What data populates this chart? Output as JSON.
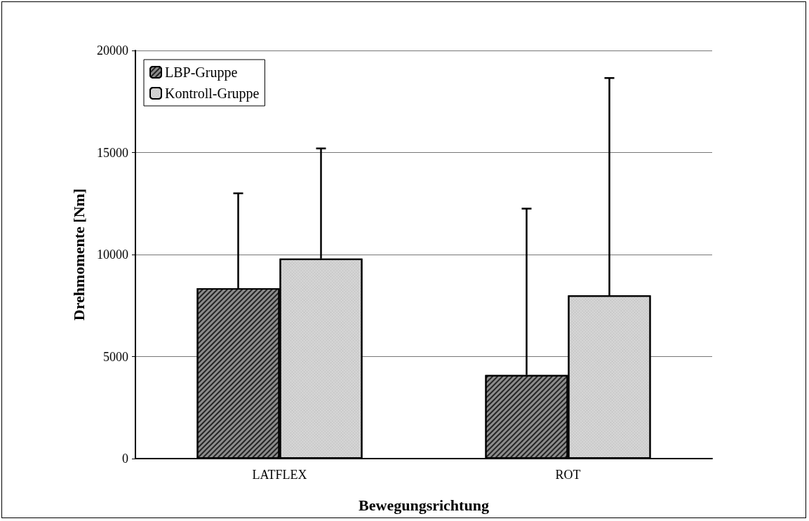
{
  "chart_data": {
    "type": "bar",
    "xlabel": "Bewegungsrichtung",
    "ylabel": "Drehmomente [Nm]",
    "categories": [
      "LATFLEX",
      "ROT"
    ],
    "series": [
      {
        "name": "LBP-Gruppe",
        "color": "#8c8c8c",
        "values": [
          8350,
          4100
        ],
        "errors": [
          [
            8350,
            13000
          ],
          [
            4100,
            12250
          ]
        ]
      },
      {
        "name": "Kontroll-Gruppe",
        "color": "#d4d4d4",
        "values": [
          9800,
          8000
        ],
        "errors": [
          [
            9800,
            15200
          ],
          [
            8000,
            18650
          ]
        ]
      }
    ],
    "ylim": [
      0,
      20000
    ],
    "yticks": [
      0,
      5000,
      10000,
      15000,
      20000
    ],
    "grid": "y",
    "legend": "top left"
  }
}
